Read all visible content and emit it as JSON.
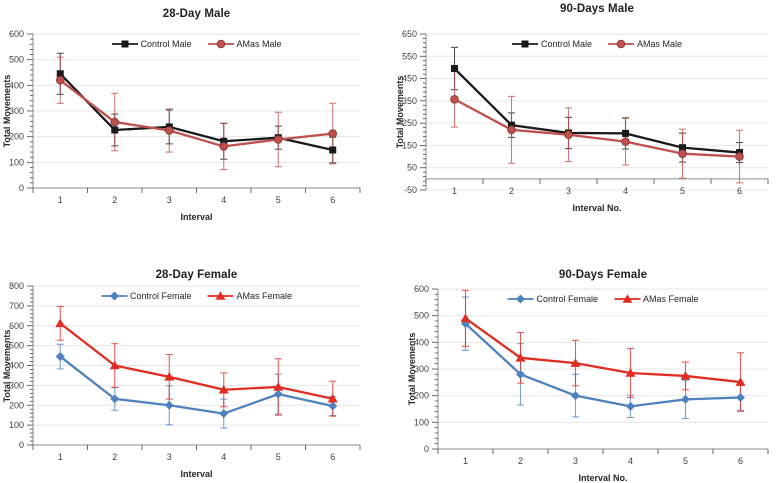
{
  "page_title": "Total movements by interval, 28-day and 90-days, male and female",
  "chart_data": [
    {
      "type": "line",
      "title": "28-Day Male",
      "xlabel": "Interval",
      "ylabel": "Total Movements",
      "categories": [
        "1",
        "2",
        "3",
        "4",
        "5",
        "6"
      ],
      "ylim": [
        0,
        600
      ],
      "ystep": 100,
      "yminor": 20,
      "yticks": [
        0,
        100,
        200,
        300,
        400,
        500,
        600
      ],
      "grid": "horizontal-major",
      "legend_position": "top-center-inside",
      "series": [
        {
          "name": "Control Male",
          "color": "#1A1A1A",
          "marker": "square",
          "values": [
            445,
            226,
            238,
            182,
            196,
            148
          ],
          "errors": [
            80,
            62,
            66,
            70,
            45,
            50
          ]
        },
        {
          "name": "AMas Male",
          "color": "#C0504D",
          "marker": "circle",
          "values": [
            420,
            257,
            224,
            162,
            189,
            212
          ],
          "errors": [
            90,
            112,
            84,
            90,
            106,
            118
          ]
        }
      ]
    },
    {
      "type": "line",
      "title": "90-Days Male",
      "xlabel": "Interval No.",
      "ylabel": "Total Movements",
      "categories": [
        "1",
        "2",
        "3",
        "4",
        "5",
        "6"
      ],
      "ylim": [
        -50,
        650
      ],
      "ystep": 100,
      "yminor": 20,
      "yticks": [
        -50,
        50,
        150,
        250,
        350,
        450,
        550,
        650
      ],
      "grid": "horizontal-major",
      "legend_position": "top-center-inside",
      "series": [
        {
          "name": "Control Male",
          "color": "#1A1A1A",
          "marker": "square",
          "values": [
            495,
            241,
            206,
            204,
            140,
            118
          ],
          "errors": [
            95,
            55,
            70,
            70,
            65,
            45
          ]
        },
        {
          "name": "AMas Male",
          "color": "#C0504D",
          "marker": "circle",
          "values": [
            357,
            220,
            198,
            167,
            113,
            100
          ],
          "errors": [
            125,
            150,
            120,
            105,
            110,
            118
          ]
        }
      ]
    },
    {
      "type": "line",
      "title": "28-Day Female",
      "xlabel": "Interval",
      "ylabel": "Total Movements",
      "categories": [
        "1",
        "2",
        "3",
        "4",
        "5",
        "6"
      ],
      "ylim": [
        0,
        800
      ],
      "ystep": 100,
      "yminor": 20,
      "yticks": [
        0,
        100,
        200,
        300,
        400,
        500,
        600,
        700,
        800
      ],
      "grid": "horizontal-major",
      "legend_position": "top-center-inside",
      "series": [
        {
          "name": "Control Female",
          "color": "#4F81BD",
          "marker": "diamond",
          "values": [
            445,
            232,
            200,
            158,
            256,
            196
          ],
          "errors": [
            62,
            57,
            98,
            73,
            100,
            48
          ]
        },
        {
          "name": "AMas Female",
          "color": "#E02C21",
          "marker": "triangle",
          "values": [
            612,
            400,
            343,
            278,
            292,
            233
          ],
          "errors": [
            85,
            110,
            112,
            85,
            142,
            88
          ]
        }
      ]
    },
    {
      "type": "line",
      "title": "90-Days Female",
      "xlabel": "Interval No.",
      "ylabel": "Total Movements",
      "categories": [
        "1",
        "2",
        "3",
        "4",
        "5",
        "6"
      ],
      "ylim": [
        0,
        600
      ],
      "ystep": 100,
      "yminor": 20,
      "yticks": [
        0,
        100,
        200,
        300,
        400,
        500,
        600
      ],
      "grid": "horizontal-major",
      "legend_position": "top-center-inside",
      "series": [
        {
          "name": "Control Female",
          "color": "#4F81BD",
          "marker": "diamond",
          "values": [
            470,
            280,
            200,
            160,
            186,
            193
          ],
          "errors": [
            100,
            115,
            80,
            42,
            72,
            48
          ]
        },
        {
          "name": "AMas Female",
          "color": "#E02C21",
          "marker": "triangle",
          "values": [
            490,
            342,
            322,
            285,
            274,
            251
          ],
          "errors": [
            105,
            95,
            85,
            92,
            52,
            110
          ]
        }
      ]
    }
  ],
  "style_colors": {
    "grid": "#E7E7E7",
    "axis": "#8C8C8C",
    "tick": "#595959",
    "tick_label": "#3F3F3F"
  }
}
